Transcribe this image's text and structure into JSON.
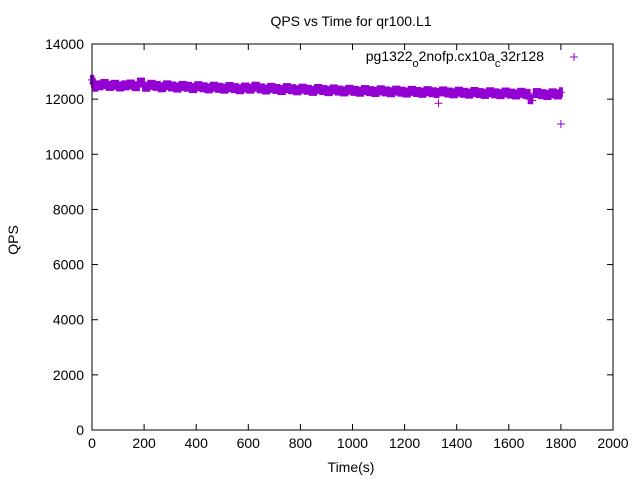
{
  "chart_data": {
    "type": "scatter",
    "title": "QPS vs Time for qr100.L1",
    "xlabel": "Time(s)",
    "ylabel": "QPS",
    "xlim": [
      0,
      2000
    ],
    "ylim": [
      0,
      14000
    ],
    "xticks": [
      0,
      200,
      400,
      600,
      800,
      1000,
      1200,
      1400,
      1600,
      1800,
      2000
    ],
    "yticks": [
      0,
      2000,
      4000,
      6000,
      8000,
      10000,
      12000,
      14000
    ],
    "grid": false,
    "legend_position": "top-right",
    "series": [
      {
        "name": "pg1322_o2nofp.cx10a_c32r128",
        "legend_parts": [
          "pg1322",
          "o",
          "2nofp.cx10a",
          "c",
          "32r128"
        ],
        "color": "#9400d3",
        "marker": "plus",
        "x": [
          0,
          5,
          10,
          20,
          40,
          60,
          80,
          100,
          120,
          140,
          160,
          180,
          200,
          220,
          240,
          260,
          280,
          300,
          320,
          340,
          360,
          380,
          400,
          420,
          440,
          460,
          480,
          500,
          520,
          540,
          560,
          580,
          600,
          620,
          640,
          660,
          680,
          700,
          720,
          740,
          760,
          780,
          800,
          820,
          840,
          860,
          880,
          900,
          920,
          940,
          960,
          980,
          1000,
          1020,
          1040,
          1060,
          1080,
          1100,
          1120,
          1140,
          1160,
          1180,
          1200,
          1220,
          1240,
          1260,
          1280,
          1300,
          1320,
          1330,
          1340,
          1360,
          1380,
          1400,
          1420,
          1440,
          1460,
          1480,
          1500,
          1520,
          1540,
          1560,
          1580,
          1600,
          1620,
          1640,
          1660,
          1680,
          1690,
          1700,
          1720,
          1740,
          1760,
          1780,
          1800,
          1800
        ],
        "y": [
          12700,
          12600,
          12450,
          12500,
          12550,
          12480,
          12520,
          12460,
          12500,
          12530,
          12470,
          12600,
          12450,
          12520,
          12480,
          12430,
          12500,
          12460,
          12420,
          12480,
          12450,
          12400,
          12470,
          12430,
          12390,
          12450,
          12410,
          12380,
          12440,
          12400,
          12360,
          12420,
          12380,
          12450,
          12390,
          12350,
          12410,
          12370,
          12330,
          12400,
          12360,
          12320,
          12380,
          12340,
          12300,
          12370,
          12330,
          12290,
          12350,
          12310,
          12280,
          12340,
          12300,
          12270,
          12330,
          12290,
          12260,
          12320,
          12280,
          12250,
          12310,
          12270,
          12240,
          12300,
          12260,
          12230,
          12290,
          12250,
          12220,
          11850,
          12280,
          12240,
          12210,
          12270,
          12230,
          12200,
          12260,
          12220,
          12190,
          12250,
          12210,
          12180,
          12240,
          12200,
          12170,
          12230,
          12190,
          12000,
          11950,
          12220,
          12180,
          12150,
          12210,
          12170,
          12250,
          11100
        ]
      }
    ]
  }
}
